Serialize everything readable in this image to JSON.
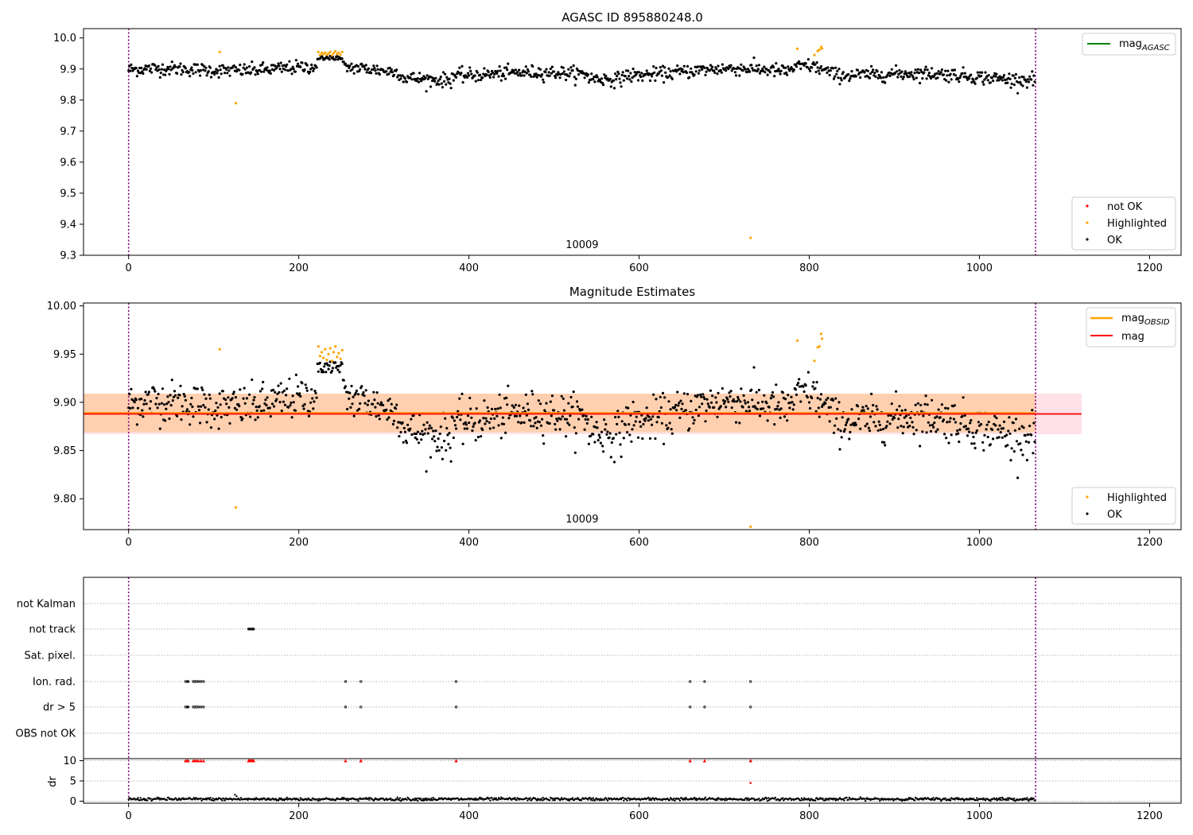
{
  "figure": {
    "background": "#ffffff"
  },
  "colors": {
    "ok": "#000000",
    "highlighted": "#ffa500",
    "not_ok": "#ff0000",
    "mag_agasc_line": "#008000",
    "mag_obsid_line": "#ffa500",
    "mag_line": "#ff0000",
    "band_obsid": "#ffd0b0",
    "band_mag": "#ffe0e6",
    "obsid_boundary": "#800080",
    "grid": "#b0b0b0"
  },
  "chart_data": [
    {
      "id": "agasc",
      "type": "scatter",
      "title": "AGASC ID 895880248.0",
      "xlim": [
        -53,
        1237
      ],
      "ylim": [
        9.3,
        10.03
      ],
      "xticks": [
        0,
        200,
        400,
        600,
        800,
        1000,
        1200
      ],
      "yticks": [
        9.3,
        9.4,
        9.5,
        9.6,
        9.7,
        9.8,
        9.9,
        10.0
      ],
      "ytick_labels": [
        "9.3",
        "9.4",
        "9.5",
        "9.6",
        "9.7",
        "9.8",
        "9.9",
        "10.0"
      ],
      "obsid_label": "10009",
      "obsid_label_x": 533,
      "obsid_boundaries": [
        0,
        1066
      ],
      "legend_lines": [
        {
          "label": "mag",
          "subscript": "AGASC",
          "color": "#008000",
          "location": "upper right"
        }
      ],
      "legend_points": [
        {
          "label": "not OK",
          "color": "#ff0000"
        },
        {
          "label": "Highlighted",
          "color": "#ffa500"
        },
        {
          "label": "OK",
          "color": "#000000"
        }
      ],
      "legend_points_location": "lower right",
      "ok_series": {
        "n": 1066,
        "base": 9.888,
        "noise": 0.014,
        "gap": [
          222,
          252
        ]
      },
      "highlighted_points": [
        {
          "x": 107,
          "y": 9.955
        },
        {
          "x": 126,
          "y": 9.79
        },
        {
          "x": 223,
          "y": 9.955
        },
        {
          "x": 225,
          "y": 9.945
        },
        {
          "x": 227,
          "y": 9.952
        },
        {
          "x": 229,
          "y": 9.948
        },
        {
          "x": 231,
          "y": 9.953
        },
        {
          "x": 233,
          "y": 9.946
        },
        {
          "x": 235,
          "y": 9.95
        },
        {
          "x": 237,
          "y": 9.955
        },
        {
          "x": 239,
          "y": 9.944
        },
        {
          "x": 241,
          "y": 9.951
        },
        {
          "x": 243,
          "y": 9.957
        },
        {
          "x": 245,
          "y": 9.948
        },
        {
          "x": 247,
          "y": 9.953
        },
        {
          "x": 249,
          "y": 9.946
        },
        {
          "x": 251,
          "y": 9.955
        },
        {
          "x": 731,
          "y": 9.356
        },
        {
          "x": 786,
          "y": 9.965
        },
        {
          "x": 806,
          "y": 9.945
        },
        {
          "x": 810,
          "y": 9.958
        },
        {
          "x": 812,
          "y": 9.962
        },
        {
          "x": 814,
          "y": 9.971
        },
        {
          "x": 815,
          "y": 9.966
        }
      ],
      "cluster_ok": {
        "x_start": 222,
        "x_end": 252,
        "center": 9.936,
        "spread": 0.006
      }
    },
    {
      "id": "estimates",
      "type": "scatter",
      "title": "Magnitude Estimates",
      "xlim": [
        -53,
        1237
      ],
      "ylim": [
        9.768,
        10.003
      ],
      "xticks": [
        0,
        200,
        400,
        600,
        800,
        1000,
        1200
      ],
      "yticks": [
        9.8,
        9.85,
        9.9,
        9.95,
        10.0
      ],
      "ytick_labels": [
        "9.80",
        "9.85",
        "9.90",
        "9.95",
        "10.00"
      ],
      "obsid_label": "10009",
      "obsid_label_x": 533,
      "obsid_boundaries": [
        0,
        1066
      ],
      "mag_obsid": {
        "value": 9.889,
        "band": [
          9.869,
          9.909
        ],
        "x_range": [
          -53,
          1066
        ]
      },
      "mag": {
        "value": 9.888,
        "band": [
          9.867,
          9.909
        ],
        "x_range": [
          -53,
          1120
        ]
      },
      "legend_lines": [
        {
          "label": "mag",
          "subscript": "OBSID",
          "color": "#ffa500"
        },
        {
          "label": "mag",
          "subscript": "",
          "color": "#ff0000"
        }
      ],
      "legend_points": [
        {
          "label": "Highlighted",
          "color": "#ffa500"
        },
        {
          "label": "OK",
          "color": "#000000"
        }
      ],
      "legend_points_location": "lower right",
      "ok_series": {
        "n": 1066,
        "base": 9.888,
        "noise": 0.014,
        "gap": [
          222,
          252
        ]
      },
      "highlighted_points": [
        {
          "x": 107,
          "y": 9.955
        },
        {
          "x": 126,
          "y": 9.791
        },
        {
          "x": 223,
          "y": 9.958
        },
        {
          "x": 225,
          "y": 9.948
        },
        {
          "x": 227,
          "y": 9.952
        },
        {
          "x": 229,
          "y": 9.946
        },
        {
          "x": 231,
          "y": 9.955
        },
        {
          "x": 233,
          "y": 9.944
        },
        {
          "x": 235,
          "y": 9.95
        },
        {
          "x": 237,
          "y": 9.956
        },
        {
          "x": 239,
          "y": 9.943
        },
        {
          "x": 241,
          "y": 9.952
        },
        {
          "x": 243,
          "y": 9.958
        },
        {
          "x": 245,
          "y": 9.947
        },
        {
          "x": 247,
          "y": 9.951
        },
        {
          "x": 249,
          "y": 9.945
        },
        {
          "x": 251,
          "y": 9.954
        },
        {
          "x": 731,
          "y": 9.771
        },
        {
          "x": 786,
          "y": 9.964
        },
        {
          "x": 806,
          "y": 9.943
        },
        {
          "x": 810,
          "y": 9.957
        },
        {
          "x": 812,
          "y": 9.958
        },
        {
          "x": 814,
          "y": 9.971
        },
        {
          "x": 815,
          "y": 9.966
        }
      ],
      "cluster_ok": {
        "x_start": 222,
        "x_end": 252,
        "center": 9.936,
        "spread": 0.006
      }
    },
    {
      "id": "flags",
      "type": "scatter",
      "title": "",
      "xlim": [
        -53,
        1237
      ],
      "xticks": [
        0,
        200,
        400,
        600,
        800,
        1000,
        1200
      ],
      "obsid_boundaries": [
        0,
        1066
      ],
      "flag_rows": [
        "not Kalman",
        "not track",
        "Sat. pixel.",
        "Ion. rad.",
        "dr > 5",
        "OBS not OK"
      ],
      "flag_points": {
        "not track": [
          141,
          142,
          143,
          144,
          145,
          146,
          147
        ],
        "Ion. rad.": [
          67,
          69,
          70,
          76,
          78,
          80,
          82,
          85,
          88,
          255,
          273,
          385,
          660,
          677,
          731
        ],
        "dr > 5": [
          67,
          69,
          70,
          76,
          78,
          80,
          82,
          85,
          88,
          255,
          273,
          385,
          660,
          677,
          731
        ]
      },
      "dr_axis": {
        "label": "dr",
        "ylim": [
          -0.5,
          10.5
        ],
        "yticks": [
          0,
          5,
          10
        ],
        "ytick_labels": [
          "0",
          "5",
          "10"
        ],
        "clip_value": 10,
        "high_points": [
          67,
          69,
          70,
          76,
          78,
          80,
          82,
          85,
          88,
          141,
          142,
          143,
          144,
          145,
          146,
          147,
          255,
          273,
          385,
          660,
          677
        ],
        "mid_points": [
          {
            "x": 731,
            "y": 4.5
          },
          {
            "x": 731,
            "y": 10
          }
        ],
        "spike_points": [
          {
            "x": 125,
            "y": 1.6
          },
          {
            "x": 127,
            "y": 1.2
          }
        ],
        "baseline": {
          "n": 1066,
          "base": 0.5,
          "noise": 0.18
        }
      }
    }
  ]
}
